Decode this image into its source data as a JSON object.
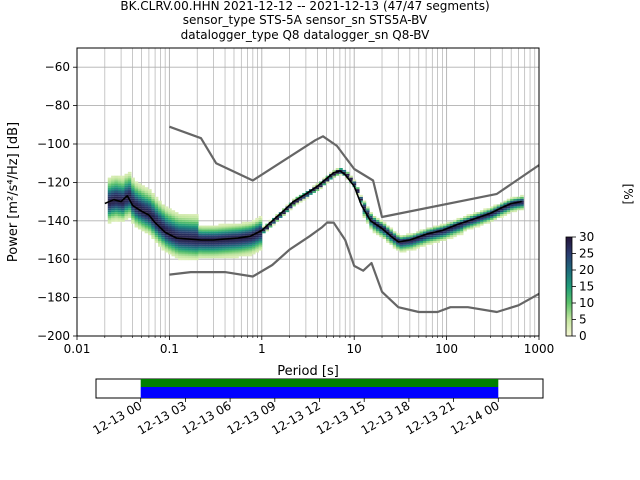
{
  "figure": {
    "title_lines": [
      "BK.CLRV.00.HHN   2021-12-12 -- 2021-12-13  (47/47 segments)",
      "sensor_type STS-5A sensor_sn STS5A-BV",
      "datalogger_type Q8 datalogger_sn Q8-BV"
    ]
  },
  "chart_data": [
    {
      "type": "heatmap",
      "xlabel": "Period [s]",
      "ylabel": "Power [m²/s⁴/Hz] [dB]",
      "xscale": "log",
      "xlim": [
        0.01,
        1000
      ],
      "ylim": [
        -200,
        -50
      ],
      "xticks": [
        0.01,
        0.1,
        1,
        10,
        100,
        1000
      ],
      "xtick_labels": [
        "0.01",
        "0.1",
        "1",
        "10",
        "100",
        "1000"
      ],
      "yticks": [
        -200,
        -180,
        -160,
        -140,
        -120,
        -100,
        -80,
        -60
      ],
      "ytick_labels": [
        "−200",
        "−180",
        "−160",
        "−140",
        "−120",
        "−100",
        "−80",
        "−60"
      ],
      "grid": true,
      "colorbar": {
        "label": "[%]",
        "range": [
          0,
          30
        ],
        "ticks": [
          0,
          5,
          10,
          15,
          20,
          25,
          30
        ],
        "tick_labels": [
          "0",
          "5",
          "10",
          "15",
          "20",
          "25",
          "30"
        ],
        "colors": [
          "#f6f6d3",
          "#c4e6a0",
          "#5cc26b",
          "#1f9c7a",
          "#1f6a7c",
          "#2a3a6e",
          "#241438"
        ]
      },
      "series": [
        {
          "role": "noise-model-high",
          "color": "#666666",
          "points": [
            [
              0.1,
              -91
            ],
            [
              0.22,
              -97
            ],
            [
              0.32,
              -110
            ],
            [
              0.8,
              -119
            ],
            [
              3.8,
              -98
            ],
            [
              4.6,
              -96
            ],
            [
              6.5,
              -101
            ],
            [
              10,
              -113
            ],
            [
              16,
              -119
            ],
            [
              20,
              -138
            ],
            [
              350,
              -126
            ],
            [
              1000,
              -111
            ]
          ]
        },
        {
          "role": "noise-model-low",
          "color": "#666666",
          "points": [
            [
              0.1,
              -168
            ],
            [
              0.17,
              -166.7
            ],
            [
              0.4,
              -166.7
            ],
            [
              0.8,
              -169
            ],
            [
              1.3,
              -163
            ],
            [
              2,
              -155
            ],
            [
              3.3,
              -148
            ],
            [
              4.5,
              -143.3
            ],
            [
              5.1,
              -140.9
            ],
            [
              6,
              -141
            ],
            [
              8,
              -150
            ],
            [
              10,
              -163.5
            ],
            [
              12.5,
              -166
            ],
            [
              15.4,
              -162
            ],
            [
              20,
              -177
            ],
            [
              30,
              -185
            ],
            [
              50,
              -187.5
            ],
            [
              80,
              -187.5
            ],
            [
              110,
              -185
            ],
            [
              170,
              -185
            ],
            [
              350,
              -187.5
            ],
            [
              600,
              -184
            ],
            [
              1000,
              -178
            ]
          ]
        },
        {
          "role": "mode",
          "color": "#000000",
          "points": [
            [
              0.02,
              -131
            ],
            [
              0.025,
              -129
            ],
            [
              0.03,
              -130
            ],
            [
              0.035,
              -127
            ],
            [
              0.04,
              -132
            ],
            [
              0.05,
              -135
            ],
            [
              0.06,
              -137
            ],
            [
              0.07,
              -141
            ],
            [
              0.09,
              -146
            ],
            [
              0.12,
              -149
            ],
            [
              0.16,
              -149.5
            ],
            [
              0.22,
              -150
            ],
            [
              0.3,
              -150
            ],
            [
              0.4,
              -149.5
            ],
            [
              0.55,
              -149
            ],
            [
              0.75,
              -148
            ],
            [
              1,
              -145
            ],
            [
              1.3,
              -140
            ],
            [
              1.7,
              -135
            ],
            [
              2.2,
              -130
            ],
            [
              3,
              -126
            ],
            [
              4,
              -122
            ],
            [
              5,
              -118
            ],
            [
              6,
              -115
            ],
            [
              7,
              -114
            ],
            [
              8,
              -116
            ],
            [
              10,
              -122
            ],
            [
              12,
              -132
            ],
            [
              15,
              -140
            ],
            [
              20,
              -144
            ],
            [
              25,
              -148
            ],
            [
              30,
              -151
            ],
            [
              40,
              -150
            ],
            [
              60,
              -147
            ],
            [
              90,
              -145
            ],
            [
              130,
              -142
            ],
            [
              200,
              -139
            ],
            [
              300,
              -136
            ],
            [
              400,
              -133
            ],
            [
              500,
              -131
            ],
            [
              650,
              -130
            ]
          ]
        }
      ]
    },
    {
      "type": "timeline",
      "x_tick_labels": [
        "12-13 00",
        "12-13 03",
        "12-13 06",
        "12-13 09",
        "12-13 12",
        "12-13 15",
        "12-13 18",
        "12-13 21",
        "12-14 00"
      ],
      "x_range_hours": [
        -3,
        27
      ],
      "coverage_hours": [
        0,
        24
      ],
      "bands": [
        {
          "role": "coverage-top",
          "color": "#008000"
        },
        {
          "role": "coverage-bottom",
          "color": "#0000ff"
        }
      ]
    }
  ]
}
